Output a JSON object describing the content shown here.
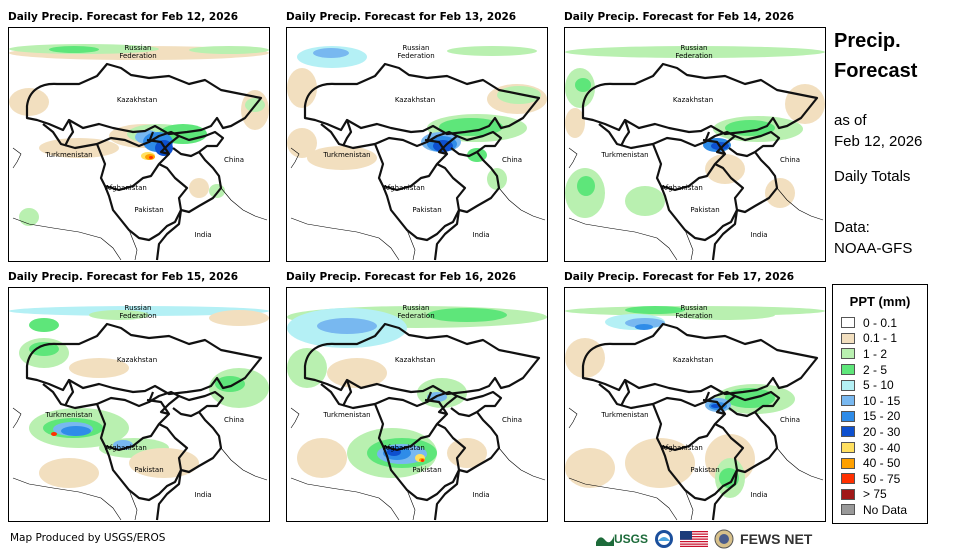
{
  "panels": [
    {
      "title": "Daily Precip. Forecast for Feb 12, 2026"
    },
    {
      "title": "Daily Precip. Forecast for Feb 13, 2026"
    },
    {
      "title": "Daily Precip. Forecast for Feb 14, 2026"
    },
    {
      "title": "Daily Precip. Forecast for Feb 15, 2026"
    },
    {
      "title": "Daily Precip. Forecast for Feb 16, 2026"
    },
    {
      "title": "Daily Precip. Forecast for Feb 17, 2026"
    }
  ],
  "map_labels": {
    "russia_line1": "Russian",
    "russia_line2": "Federation",
    "kazakhstan": "Kazakhstan",
    "turkmenistan": "Turkmenistan",
    "afghanistan": "Afghanistan",
    "pakistan": "Pakistan",
    "china": "China",
    "india": "India"
  },
  "side": {
    "title_line1": "Precip.",
    "title_line2": "Forecast",
    "as_of_line1": "as of",
    "as_of_line2": "Feb 12, 2026",
    "totals": "Daily Totals",
    "data_line1": "Data:",
    "data_line2": "NOAA-GFS"
  },
  "legend": {
    "title": "PPT (mm)",
    "items": [
      {
        "label": "0 - 0.1",
        "color": "#ffffff"
      },
      {
        "label": "0.1 - 1",
        "color": "#f2dfbf"
      },
      {
        "label": "1 - 2",
        "color": "#b9f0b0"
      },
      {
        "label": "2 - 5",
        "color": "#5ee67a"
      },
      {
        "label": "5 - 10",
        "color": "#b4f0f5"
      },
      {
        "label": "10 - 15",
        "color": "#78b8f0"
      },
      {
        "label": "15 - 20",
        "color": "#2f8ce8"
      },
      {
        "label": "20 - 30",
        "color": "#0d50cf"
      },
      {
        "label": "30 - 40",
        "color": "#ffe060"
      },
      {
        "label": "40 - 50",
        "color": "#ffa000"
      },
      {
        "label": "50 - 75",
        "color": "#ff3000"
      },
      {
        "label": "> 75",
        "color": "#a01818"
      },
      {
        "label": "No Data",
        "color": "#999999"
      }
    ]
  },
  "footer": {
    "credit": "Map Produced by USGS/EROS",
    "usgs_logo": "USGS",
    "fews_logo": "FEWS NET"
  }
}
